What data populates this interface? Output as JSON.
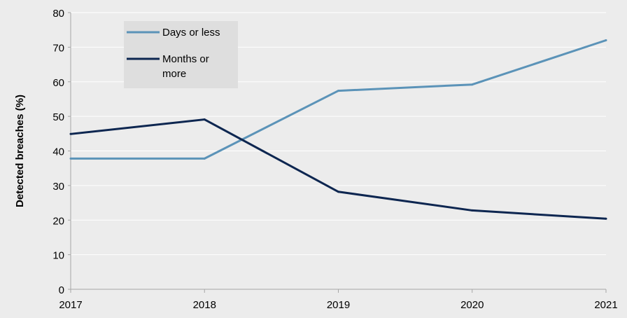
{
  "chart_data": {
    "type": "line",
    "title": "",
    "xlabel": "",
    "ylabel": "Detected breaches (%)",
    "ylim": [
      0,
      80
    ],
    "yticks": [
      0,
      10,
      20,
      30,
      40,
      50,
      60,
      70,
      80
    ],
    "categories": [
      "2017",
      "2018",
      "2019",
      "2020",
      "2021"
    ],
    "grid": "horizontal",
    "legend_position": "top-left",
    "series": [
      {
        "name": "Days or less",
        "color": "#5b93b8",
        "values": [
          37.8,
          37.8,
          57.4,
          59.2,
          72
        ]
      },
      {
        "name": "Months or more",
        "color": "#0d2650",
        "values": [
          44.9,
          49.1,
          28.2,
          22.8,
          20.4
        ]
      }
    ],
    "legend": {
      "items": [
        {
          "lines": [
            "Days or less"
          ]
        },
        {
          "lines": [
            "Months or",
            "more"
          ]
        }
      ]
    }
  }
}
